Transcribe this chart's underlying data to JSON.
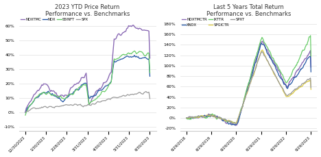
{
  "left": {
    "title": "2023 YTD Price Return\nPerformance vs. Benchmarks",
    "legend": [
      "NDXTMC",
      "NDX",
      "S5INFT",
      "SPX"
    ],
    "colors": [
      "#8B6BB5",
      "#2255A4",
      "#66CC66",
      "#999999"
    ],
    "x_labels": [
      "12/30/2022",
      "1/30/2023",
      "2/28/2023",
      "3/31/2023",
      "4/30/2023",
      "5/31/2023",
      "6/30/2023"
    ],
    "ylim": [
      -13,
      65
    ],
    "yticks": [
      -10,
      0,
      10,
      20,
      30,
      40,
      50,
      60
    ],
    "num_points": 130
  },
  "right": {
    "title": "Last 5 Years Total Return\nPerformance vs. Benchmarks",
    "legend_row1": [
      "NDXTMCTR",
      "XNDX",
      "IXTTR"
    ],
    "legend_row2": [
      "SPGICTR",
      "SPXT"
    ],
    "colors": [
      "#8B6BB5",
      "#2255A4",
      "#66CC66",
      "#DDCC44",
      "#999999"
    ],
    "x_labels": [
      "6/29/2018",
      "6/29/2019",
      "6/29/2020",
      "6/29/2021",
      "6/29/2022",
      "6/29/2023"
    ],
    "ylim": [
      -25,
      190
    ],
    "yticks": [
      -20,
      0,
      20,
      40,
      60,
      80,
      100,
      120,
      140,
      160,
      180
    ],
    "num_points": 260
  }
}
